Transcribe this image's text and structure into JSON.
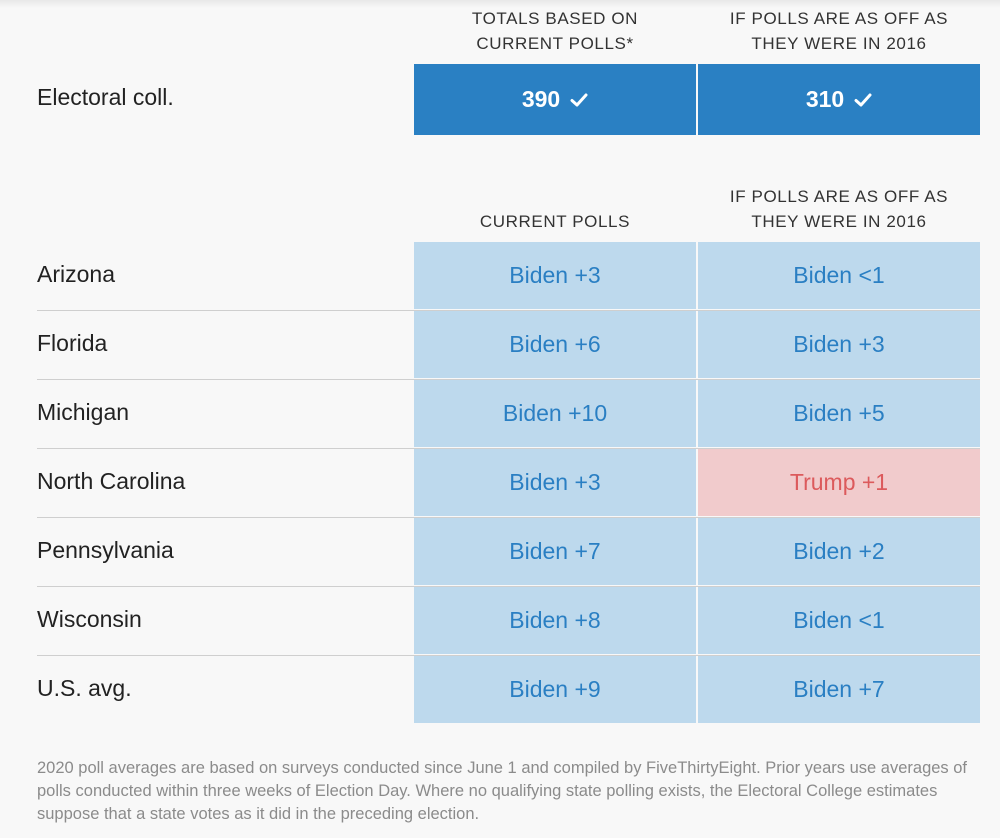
{
  "headers": {
    "totals_col1": [
      "TOTALS BASED ON",
      "CURRENT POLLS*"
    ],
    "totals_col2": [
      "IF POLLS ARE AS OFF AS",
      "THEY WERE IN 2016"
    ],
    "states_col1": [
      "CURRENT POLLS"
    ],
    "states_col2": [
      "IF POLLS ARE AS OFF AS",
      "THEY WERE IN 2016"
    ]
  },
  "electoral": {
    "label": "Electoral coll.",
    "current": "390",
    "off_2016": "310"
  },
  "rows": [
    {
      "state": "Arizona",
      "current": "Biden +3",
      "off_2016": "Biden <1",
      "off_2016_party": "biden"
    },
    {
      "state": "Florida",
      "current": "Biden +6",
      "off_2016": "Biden +3",
      "off_2016_party": "biden"
    },
    {
      "state": "Michigan",
      "current": "Biden +10",
      "off_2016": "Biden +5",
      "off_2016_party": "biden"
    },
    {
      "state": "North Carolina",
      "current": "Biden +3",
      "off_2016": "Trump +1",
      "off_2016_party": "trump"
    },
    {
      "state": "Pennsylvania",
      "current": "Biden +7",
      "off_2016": "Biden +2",
      "off_2016_party": "biden"
    },
    {
      "state": "Wisconsin",
      "current": "Biden +8",
      "off_2016": "Biden <1",
      "off_2016_party": "biden"
    },
    {
      "state": "U.S. avg.",
      "current": "Biden +9",
      "off_2016": "Biden +7",
      "off_2016_party": "biden"
    }
  ],
  "footnote": "2020 poll averages are based on surveys conducted since June 1 and compiled by FiveThirtyEight. Prior years use averages of polls conducted within three weeks of Election Day. Where no qualifying state polling exists, the Electoral College estimates suppose that a state votes as it did in the preceding election.",
  "colors": {
    "electoral_blue": "#2a80c3",
    "biden_cell": "#bdd9ed",
    "biden_text": "#2a7fc3",
    "trump_cell": "#f1cbcc",
    "trump_text": "#dc5a5c"
  }
}
